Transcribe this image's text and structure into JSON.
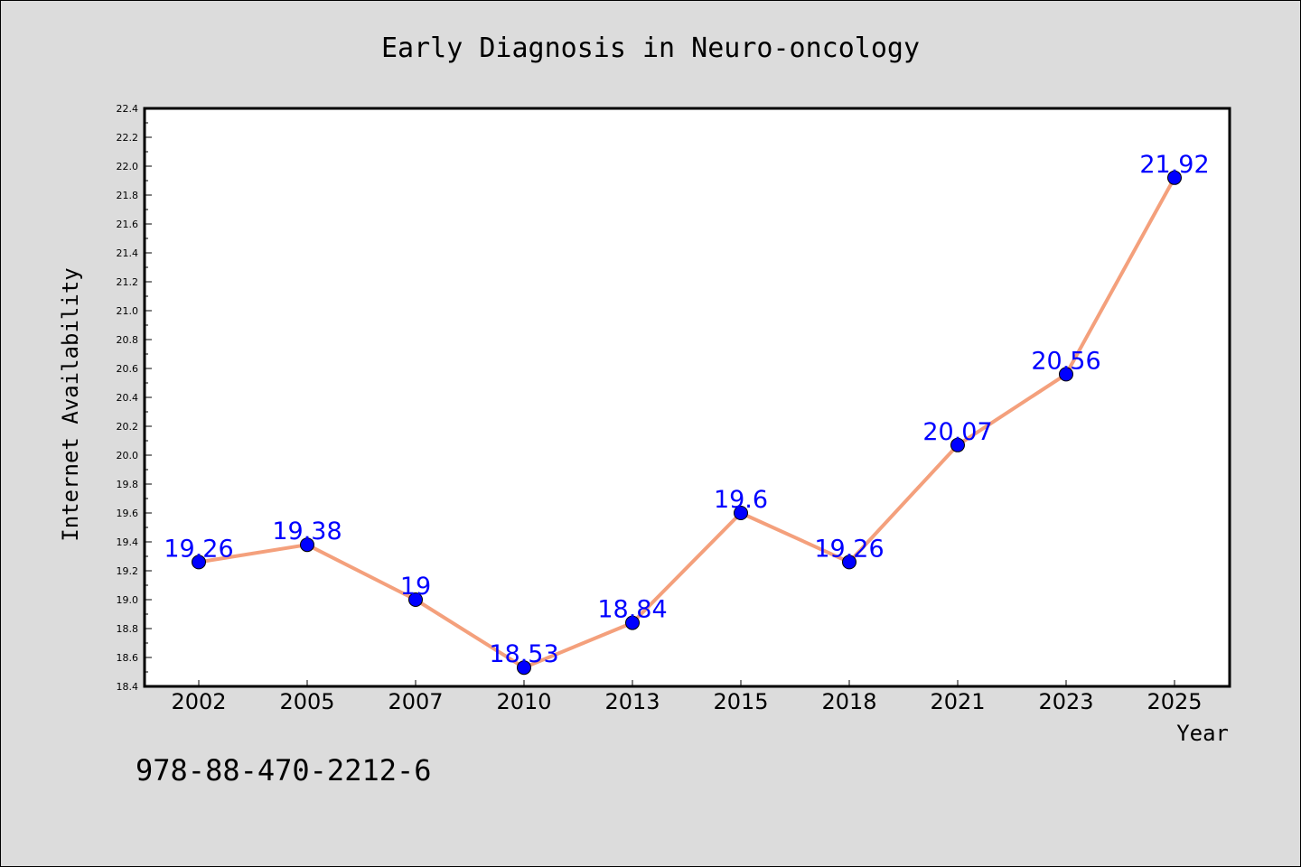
{
  "chart_data": {
    "type": "line",
    "title": "Early Diagnosis in Neuro-oncology",
    "xlabel": "Year",
    "ylabel": "Internet Availability",
    "categories": [
      "2002",
      "2005",
      "2007",
      "2010",
      "2013",
      "2015",
      "2018",
      "2021",
      "2023",
      "2025"
    ],
    "series": [
      {
        "values": [
          19.26,
          19.38,
          19.0,
          18.53,
          18.84,
          19.6,
          19.26,
          20.07,
          20.56,
          21.92
        ],
        "data_labels": [
          "19.26",
          "19.38",
          "19",
          "18.53",
          "18.84",
          "19.6",
          "19.26",
          "20.07",
          "20.56",
          "21.92"
        ]
      }
    ],
    "ylim": [
      18.4,
      22.4
    ],
    "yticks": [
      "18.4",
      "18.6",
      "18.8",
      "19.0",
      "19.2",
      "19.4",
      "19.6",
      "19.8",
      "20.0",
      "20.2",
      "20.4",
      "20.6",
      "20.8",
      "21.0",
      "21.2",
      "21.4",
      "21.6",
      "21.8",
      "22.0",
      "22.2",
      "22.4"
    ],
    "grid": false,
    "legend": "none",
    "line_color": "#f4a07c",
    "marker_color": "#0000ff",
    "label_color": "#0000ff",
    "footer_text": "978-88-470-2212-6"
  }
}
